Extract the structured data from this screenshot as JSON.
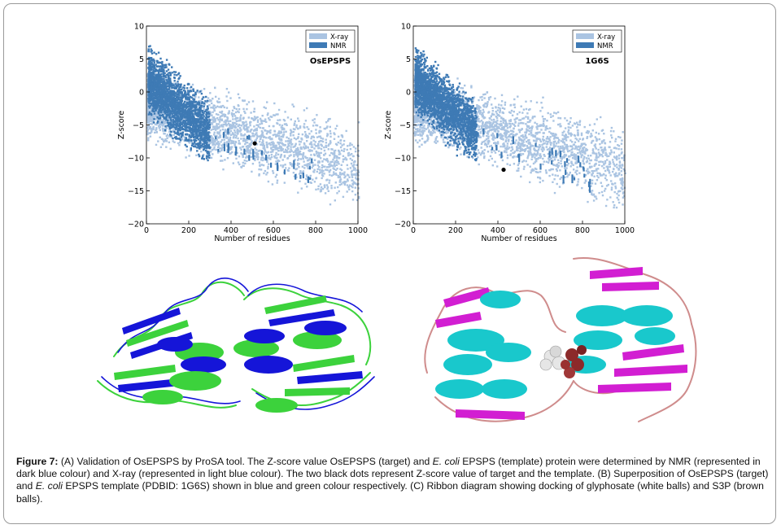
{
  "chart_data": [
    {
      "type": "scatter",
      "title": "OsEPSPS",
      "xlabel": "Number of residues",
      "ylabel": "Z-score",
      "xlim": [
        0,
        1000
      ],
      "ylim": [
        -20,
        10
      ],
      "xticks": [
        "0",
        "200",
        "400",
        "600",
        "800",
        "1000"
      ],
      "yticks": [
        "10",
        "5",
        "0",
        "−5",
        "−10",
        "−15",
        "−20"
      ],
      "legend_position": "top-right",
      "series": [
        {
          "name": "X-ray",
          "color": "#aac4e2",
          "description_points": "dense cloud, 0–1000 residues, Z from ~-14 to 0"
        },
        {
          "name": "NMR",
          "color": "#3e7ab5",
          "description_points": "dense cloud, 0–300 residues, Z from ~-12 to 10"
        }
      ],
      "marked_point": {
        "x": 512,
        "y": -7.8
      }
    },
    {
      "type": "scatter",
      "title": "1G6S",
      "xlabel": "Number of residues",
      "ylabel": "Z-score",
      "xlim": [
        0,
        1000
      ],
      "ylim": [
        -20,
        10
      ],
      "xticks": [
        "0",
        "200",
        "400",
        "600",
        "800",
        "1000"
      ],
      "yticks": [
        "10",
        "5",
        "0",
        "−5",
        "−10",
        "−15",
        "−20"
      ],
      "legend_position": "top-right",
      "series": [
        {
          "name": "X-ray",
          "color": "#aac4e2"
        },
        {
          "name": "NMR",
          "color": "#3e7ab5"
        }
      ],
      "marked_point": {
        "x": 427,
        "y": -11.8
      }
    }
  ],
  "caption": {
    "label": "Figure 7:",
    "p1": " (A) Validation of OsEPSPS by ProSA tool. The Z-score value OsEPSPS (target) and ",
    "ecoli1": "E. coli",
    "p2": " EPSPS (template) protein were determined by NMR (represented in dark blue colour) and X-ray (represented in light blue colour). The two black dots represent Z-score value of target and the template. (B) Superposition of OsEPSPS (target) and ",
    "ecoli2": "E. coli",
    "p3": " EPSPS template (PDBID: 1G6S) shown in blue and green colour respectively. (C) Ribbon diagram showing docking of glyphosate (white balls) and S3P (brown balls)."
  },
  "colors": {
    "xray": "#aac4e2",
    "nmr": "#3e7ab5",
    "target_blue": "#1515d8",
    "template_green": "#3cd23c",
    "helix_cyan": "#19c8cc",
    "sheet_magenta": "#d21ed2",
    "loop_pink": "#cf8c8c",
    "glyphosate": "#e6e6e6",
    "s3p": "#8c2a2a"
  }
}
